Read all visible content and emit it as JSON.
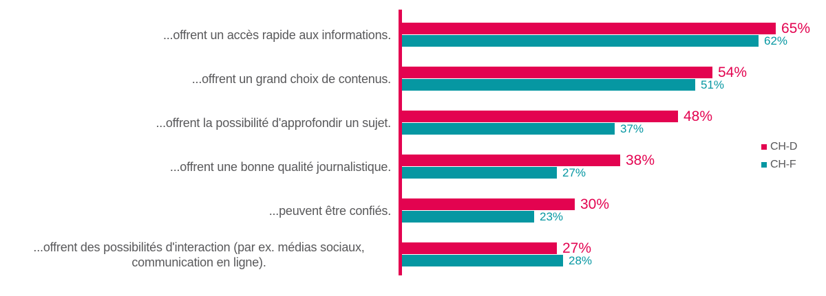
{
  "chart_data": {
    "type": "bar",
    "orientation": "horizontal",
    "title": "",
    "categories": [
      "...offrent un accès rapide aux informations.",
      "...offrent un grand choix de contenus.",
      "...offrent la possibilité d'approfondir un sujet.",
      "...offrent une bonne qualité journalistique.",
      "...peuvent être confiés.",
      "...offrent des possibilités d'interaction (par ex. médias sociaux,\ncommunication en ligne)."
    ],
    "series": [
      {
        "name": "CH-D",
        "color": "#e30350",
        "values": [
          65,
          54,
          48,
          38,
          30,
          27
        ]
      },
      {
        "name": "CH-F",
        "color": "#0697a2",
        "values": [
          62,
          51,
          37,
          27,
          23,
          28
        ]
      }
    ],
    "value_suffix": "%",
    "value_labels_shown": true,
    "axis": {
      "baseline_color": "#e30350",
      "gridlines": false,
      "x_ticks": "none"
    },
    "legend": {
      "position": "right-middle",
      "entries": [
        "CH-D",
        "CH-F"
      ]
    },
    "label_text_color": "#58585a",
    "background": "#ffffff"
  }
}
